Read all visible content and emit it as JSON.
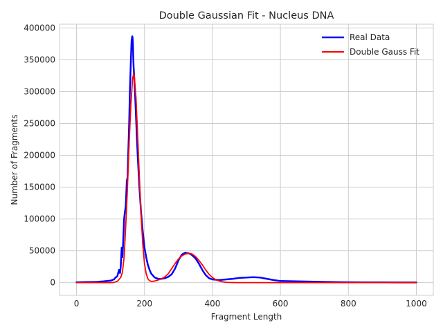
{
  "chart_data": {
    "type": "line",
    "title": "Double Gaussian Fit - Nucleus DNA",
    "xlabel": "Fragment Length",
    "ylabel": "Number of Fragments",
    "xlim": [
      -50,
      1050
    ],
    "ylim": [
      -20000,
      406000
    ],
    "xticks": [
      0,
      200,
      400,
      600,
      800,
      1000
    ],
    "yticks": [
      0,
      50000,
      100000,
      150000,
      200000,
      250000,
      300000,
      350000,
      400000
    ],
    "grid": true,
    "legend_position": "top-right",
    "series": [
      {
        "name": "Real Data",
        "color": "#0000ff",
        "x": [
          0,
          20,
          40,
          60,
          80,
          100,
          110,
          115,
          120,
          125,
          128,
          130,
          133,
          135,
          137,
          140,
          142,
          145,
          148,
          150,
          152,
          155,
          157,
          160,
          162,
          164,
          165,
          166,
          167,
          168,
          170,
          172,
          175,
          180,
          185,
          190,
          195,
          200,
          205,
          210,
          215,
          220,
          230,
          240,
          250,
          260,
          270,
          280,
          290,
          300,
          310,
          320,
          330,
          335,
          340,
          350,
          360,
          370,
          380,
          390,
          400,
          420,
          440,
          460,
          480,
          500,
          520,
          540,
          560,
          580,
          600,
          650,
          700,
          750,
          800,
          850,
          900,
          950,
          1000
        ],
        "y": [
          500,
          800,
          1000,
          1200,
          2000,
          3000,
          5000,
          8000,
          10000,
          20000,
          15000,
          25000,
          55000,
          40000,
          60000,
          100000,
          110000,
          120000,
          160000,
          165000,
          200000,
          250000,
          300000,
          350000,
          380000,
          387000,
          385000,
          375000,
          355000,
          340000,
          320000,
          300000,
          260000,
          200000,
          150000,
          110000,
          80000,
          55000,
          40000,
          28000,
          20000,
          14000,
          8000,
          6000,
          6000,
          7000,
          9000,
          13000,
          22000,
          35000,
          44000,
          47000,
          46000,
          45000,
          43000,
          38000,
          30000,
          20000,
          12000,
          7000,
          5000,
          4000,
          5000,
          6000,
          7500,
          8000,
          8500,
          8000,
          6000,
          4000,
          2500,
          2000,
          1500,
          1000,
          500,
          400,
          300,
          200,
          200
        ]
      },
      {
        "name": "Double Gauss Fit",
        "color": "#ff0000",
        "x": [
          0,
          50,
          100,
          110,
          120,
          130,
          135,
          140,
          145,
          150,
          155,
          160,
          165,
          168,
          170,
          175,
          180,
          185,
          190,
          195,
          200,
          205,
          210,
          215,
          220,
          225,
          230,
          240,
          250,
          260,
          270,
          280,
          290,
          300,
          310,
          320,
          330,
          340,
          350,
          360,
          370,
          380,
          390,
          400,
          410,
          420,
          430,
          440,
          450,
          460,
          480,
          500,
          550,
          600,
          700,
          800,
          900,
          1000
        ],
        "y": [
          0,
          0,
          0,
          300,
          2000,
          8000,
          16000,
          40000,
          90000,
          150000,
          220000,
          280000,
          320000,
          328000,
          325000,
          290000,
          230000,
          165000,
          105000,
          60000,
          30000,
          14000,
          6000,
          3000,
          2000,
          2000,
          2500,
          4000,
          6000,
          9000,
          14000,
          22000,
          30000,
          37000,
          42000,
          45000,
          46000,
          45000,
          41000,
          35000,
          28000,
          20000,
          13000,
          8000,
          4500,
          2500,
          1200,
          500,
          200,
          100,
          0,
          0,
          0,
          0,
          0,
          0,
          0,
          0
        ]
      }
    ]
  }
}
